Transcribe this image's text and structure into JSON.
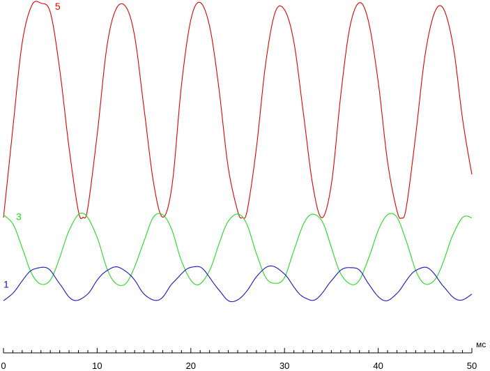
{
  "chart_data": {
    "type": "line",
    "xlabel": "мс",
    "xlim": [
      0,
      50
    ],
    "ylim": [
      0,
      1
    ],
    "grid": false,
    "legend": "none",
    "x_ticks": [
      0,
      10,
      20,
      30,
      40,
      50
    ],
    "x_tick_labels": [
      "0",
      "10",
      "20",
      "30",
      "40",
      "50"
    ],
    "series": [
      {
        "name": "5",
        "color": "#e00000",
        "x": [
          0,
          1,
          2,
          3,
          4,
          5,
          6,
          7,
          8,
          8.5,
          9,
          10,
          11,
          12,
          13,
          14,
          15,
          16,
          17,
          18,
          19,
          20,
          21,
          22,
          23,
          24,
          25,
          25.5,
          26,
          27,
          28,
          29,
          30,
          31,
          32,
          33,
          34,
          35,
          36,
          37,
          38,
          39,
          40,
          41,
          42,
          42.5,
          43,
          44,
          45,
          46,
          47,
          48,
          49,
          50
        ],
        "y": [
          0.35,
          0.62,
          0.88,
          0.99,
          1.0,
          0.97,
          0.8,
          0.56,
          0.37,
          0.35,
          0.38,
          0.6,
          0.86,
          0.98,
          0.99,
          0.9,
          0.68,
          0.46,
          0.35,
          0.45,
          0.75,
          0.95,
          1.0,
          0.93,
          0.74,
          0.5,
          0.37,
          0.35,
          0.37,
          0.56,
          0.82,
          0.97,
          0.98,
          0.88,
          0.67,
          0.45,
          0.35,
          0.45,
          0.72,
          0.93,
          1.0,
          0.94,
          0.76,
          0.52,
          0.37,
          0.35,
          0.38,
          0.6,
          0.84,
          0.97,
          0.98,
          0.87,
          0.65,
          0.48
        ]
      },
      {
        "name": "3",
        "color": "#22dd22",
        "x": [
          0,
          1,
          2,
          3,
          4,
          5,
          6,
          7,
          8,
          9,
          10,
          11,
          12,
          13,
          14,
          15,
          16,
          17,
          18,
          19,
          20,
          21,
          22,
          23,
          24,
          25,
          26,
          27,
          28,
          29,
          30,
          31,
          32,
          33,
          34,
          35,
          36,
          37,
          38,
          39,
          40,
          41,
          42,
          43,
          44,
          45,
          46,
          47,
          48,
          49,
          50
        ],
        "y": [
          0.36,
          0.33,
          0.26,
          0.18,
          0.15,
          0.16,
          0.23,
          0.31,
          0.36,
          0.35,
          0.29,
          0.2,
          0.15,
          0.15,
          0.2,
          0.28,
          0.35,
          0.36,
          0.31,
          0.22,
          0.16,
          0.15,
          0.19,
          0.27,
          0.34,
          0.36,
          0.33,
          0.24,
          0.17,
          0.15,
          0.17,
          0.25,
          0.33,
          0.36,
          0.34,
          0.26,
          0.18,
          0.15,
          0.16,
          0.23,
          0.31,
          0.36,
          0.35,
          0.28,
          0.19,
          0.15,
          0.16,
          0.22,
          0.3,
          0.35,
          0.35
        ]
      },
      {
        "name": "1",
        "color": "#1515c0",
        "x": [
          0,
          1,
          2,
          3,
          4,
          5,
          6,
          7,
          8,
          9,
          10,
          11,
          12,
          13,
          14,
          15,
          16,
          17,
          18,
          19,
          20,
          21,
          22,
          23,
          24,
          25,
          26,
          27,
          28,
          29,
          30,
          31,
          32,
          33,
          34,
          35,
          36,
          37,
          38,
          39,
          40,
          41,
          42,
          43,
          44,
          45,
          46,
          47,
          48,
          49,
          50
        ],
        "y": [
          0.1,
          0.12,
          0.16,
          0.19,
          0.2,
          0.19,
          0.15,
          0.11,
          0.1,
          0.12,
          0.16,
          0.19,
          0.2,
          0.19,
          0.16,
          0.12,
          0.1,
          0.11,
          0.15,
          0.18,
          0.2,
          0.2,
          0.17,
          0.13,
          0.1,
          0.1,
          0.13,
          0.17,
          0.2,
          0.2,
          0.18,
          0.14,
          0.11,
          0.1,
          0.12,
          0.16,
          0.19,
          0.2,
          0.19,
          0.15,
          0.11,
          0.1,
          0.12,
          0.16,
          0.19,
          0.2,
          0.18,
          0.14,
          0.11,
          0.1,
          0.12
        ]
      }
    ]
  }
}
